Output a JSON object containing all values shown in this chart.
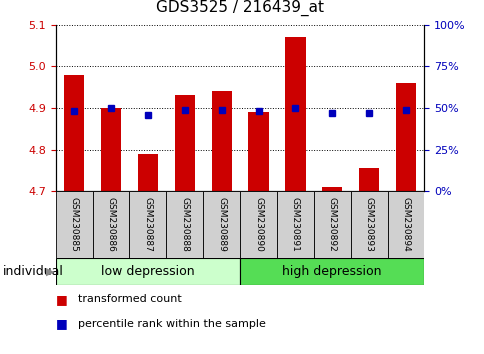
{
  "title": "GDS3525 / 216439_at",
  "samples": [
    "GSM230885",
    "GSM230886",
    "GSM230887",
    "GSM230888",
    "GSM230889",
    "GSM230890",
    "GSM230891",
    "GSM230892",
    "GSM230893",
    "GSM230894"
  ],
  "bar_values": [
    4.98,
    4.9,
    4.79,
    4.93,
    4.94,
    4.89,
    5.07,
    4.71,
    4.755,
    4.96
  ],
  "base_value": 4.7,
  "percentile_values": [
    48,
    50,
    46,
    49,
    49,
    48,
    50,
    47,
    47,
    49
  ],
  "ylim": [
    4.7,
    5.1
  ],
  "yticks_left": [
    4.7,
    4.8,
    4.9,
    5.0,
    5.1
  ],
  "yticks_right": [
    0,
    25,
    50,
    75,
    100
  ],
  "ytick_labels_right": [
    "0%",
    "25%",
    "50%",
    "75%",
    "100%"
  ],
  "bar_color": "#cc0000",
  "dot_color": "#0000bb",
  "bar_width": 0.55,
  "group_labels": [
    "low depression",
    "high depression"
  ],
  "group_colors": [
    "#ccffcc",
    "#55dd55"
  ],
  "xlabel": "individual",
  "legend_red": "transformed count",
  "legend_blue": "percentile rank within the sample",
  "tick_label_color_left": "#cc0000",
  "tick_label_color_right": "#0000bb",
  "title_fontsize": 11,
  "axis_fontsize": 8,
  "sample_fontsize": 6.5,
  "group_fontsize": 9,
  "legend_fontsize": 8,
  "bg_color": "#ffffff"
}
